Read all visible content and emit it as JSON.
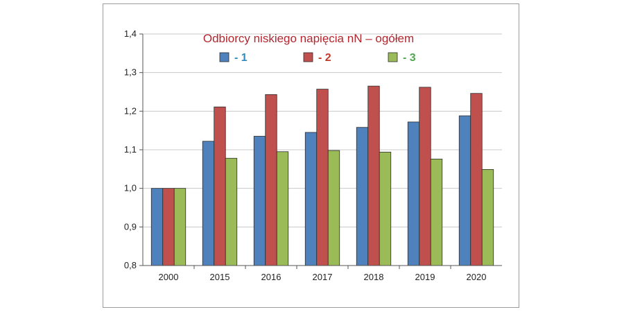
{
  "chart_data": {
    "type": "bar",
    "title": "Odbiorcy niskiego napięcia nN – ogółem",
    "xlabel": "",
    "ylabel": "",
    "categories": [
      "2000",
      "2015",
      "2016",
      "2017",
      "2018",
      "2019",
      "2020"
    ],
    "series": [
      {
        "name": "- 1",
        "color": "#4f81bd",
        "label_color": "#2e8bc0",
        "values": [
          1.0,
          1.122,
          1.135,
          1.145,
          1.158,
          1.172,
          1.188
        ]
      },
      {
        "name": "- 2",
        "color": "#c0504d",
        "label_color": "#c0392b",
        "values": [
          1.0,
          1.211,
          1.243,
          1.257,
          1.265,
          1.262,
          1.246
        ]
      },
      {
        "name": "- 3",
        "color": "#9bbb59",
        "label_color": "#4fa84f",
        "values": [
          1.0,
          1.078,
          1.095,
          1.098,
          1.094,
          1.076,
          1.049
        ]
      }
    ],
    "ylim": [
      0.8,
      1.4
    ],
    "yticks": [
      "0,8",
      "0,9",
      "1,0",
      "1,1",
      "1,2",
      "1,3",
      "1,4"
    ],
    "yticks_values": [
      0.8,
      0.9,
      1.0,
      1.1,
      1.2,
      1.3,
      1.4
    ],
    "grid": true,
    "legend_position": "top"
  }
}
